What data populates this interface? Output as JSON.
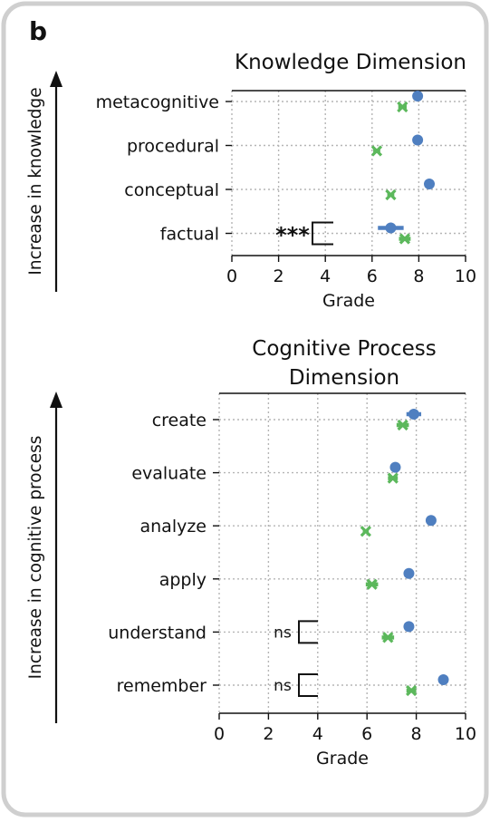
{
  "panel_label": "b",
  "colors": {
    "series_blue": "#4f7fc0",
    "series_green": "#5cb85c",
    "frame": "#cfcfcf",
    "grid": "#b5b5b5",
    "text": "#111111"
  },
  "chart_data": [
    {
      "type": "scatter",
      "title": "Knowledge Dimension",
      "xlabel": "Grade",
      "ylabel": "Increase in knowledge",
      "xlim": [
        0,
        10
      ],
      "xticks": [
        0,
        2,
        4,
        6,
        8,
        10
      ],
      "grid": true,
      "categories": [
        "metacognitive",
        "procedural",
        "conceptual",
        "factual"
      ],
      "series": [
        {
          "values": [
            7.95,
            7.95,
            8.45,
            6.8
          ],
          "err": [
            0.15,
            0.12,
            0.15,
            0.55
          ],
          "marker": "circle"
        },
        {
          "values": [
            7.3,
            6.2,
            6.8,
            7.4
          ],
          "err": [
            0.18,
            0.15,
            0.15,
            0.25
          ],
          "marker": "x"
        }
      ],
      "annotations": [
        {
          "category": "factual",
          "text": "***"
        }
      ]
    },
    {
      "type": "scatter",
      "title": "Cognitive Process Dimension",
      "title_lines": [
        "Cognitive Process",
        "Dimension"
      ],
      "xlabel": "Grade",
      "ylabel": "Increase in cognitive process",
      "xlim": [
        0,
        10
      ],
      "xticks": [
        0,
        2,
        4,
        6,
        8,
        10
      ],
      "grid": true,
      "categories": [
        "create",
        "evaluate",
        "analyze",
        "apply",
        "understand",
        "remember"
      ],
      "series": [
        {
          "values": [
            7.9,
            7.15,
            8.6,
            7.7,
            7.7,
            9.1
          ],
          "err": [
            0.3,
            0.15,
            0.12,
            0.2,
            0.15,
            0.12
          ],
          "marker": "circle"
        },
        {
          "values": [
            7.45,
            7.05,
            5.95,
            6.2,
            6.85,
            7.8
          ],
          "err": [
            0.25,
            0.2,
            0.12,
            0.25,
            0.25,
            0.2
          ],
          "marker": "x"
        }
      ],
      "annotations": [
        {
          "category": "understand",
          "text": "ns"
        },
        {
          "category": "remember",
          "text": "ns"
        }
      ]
    }
  ]
}
